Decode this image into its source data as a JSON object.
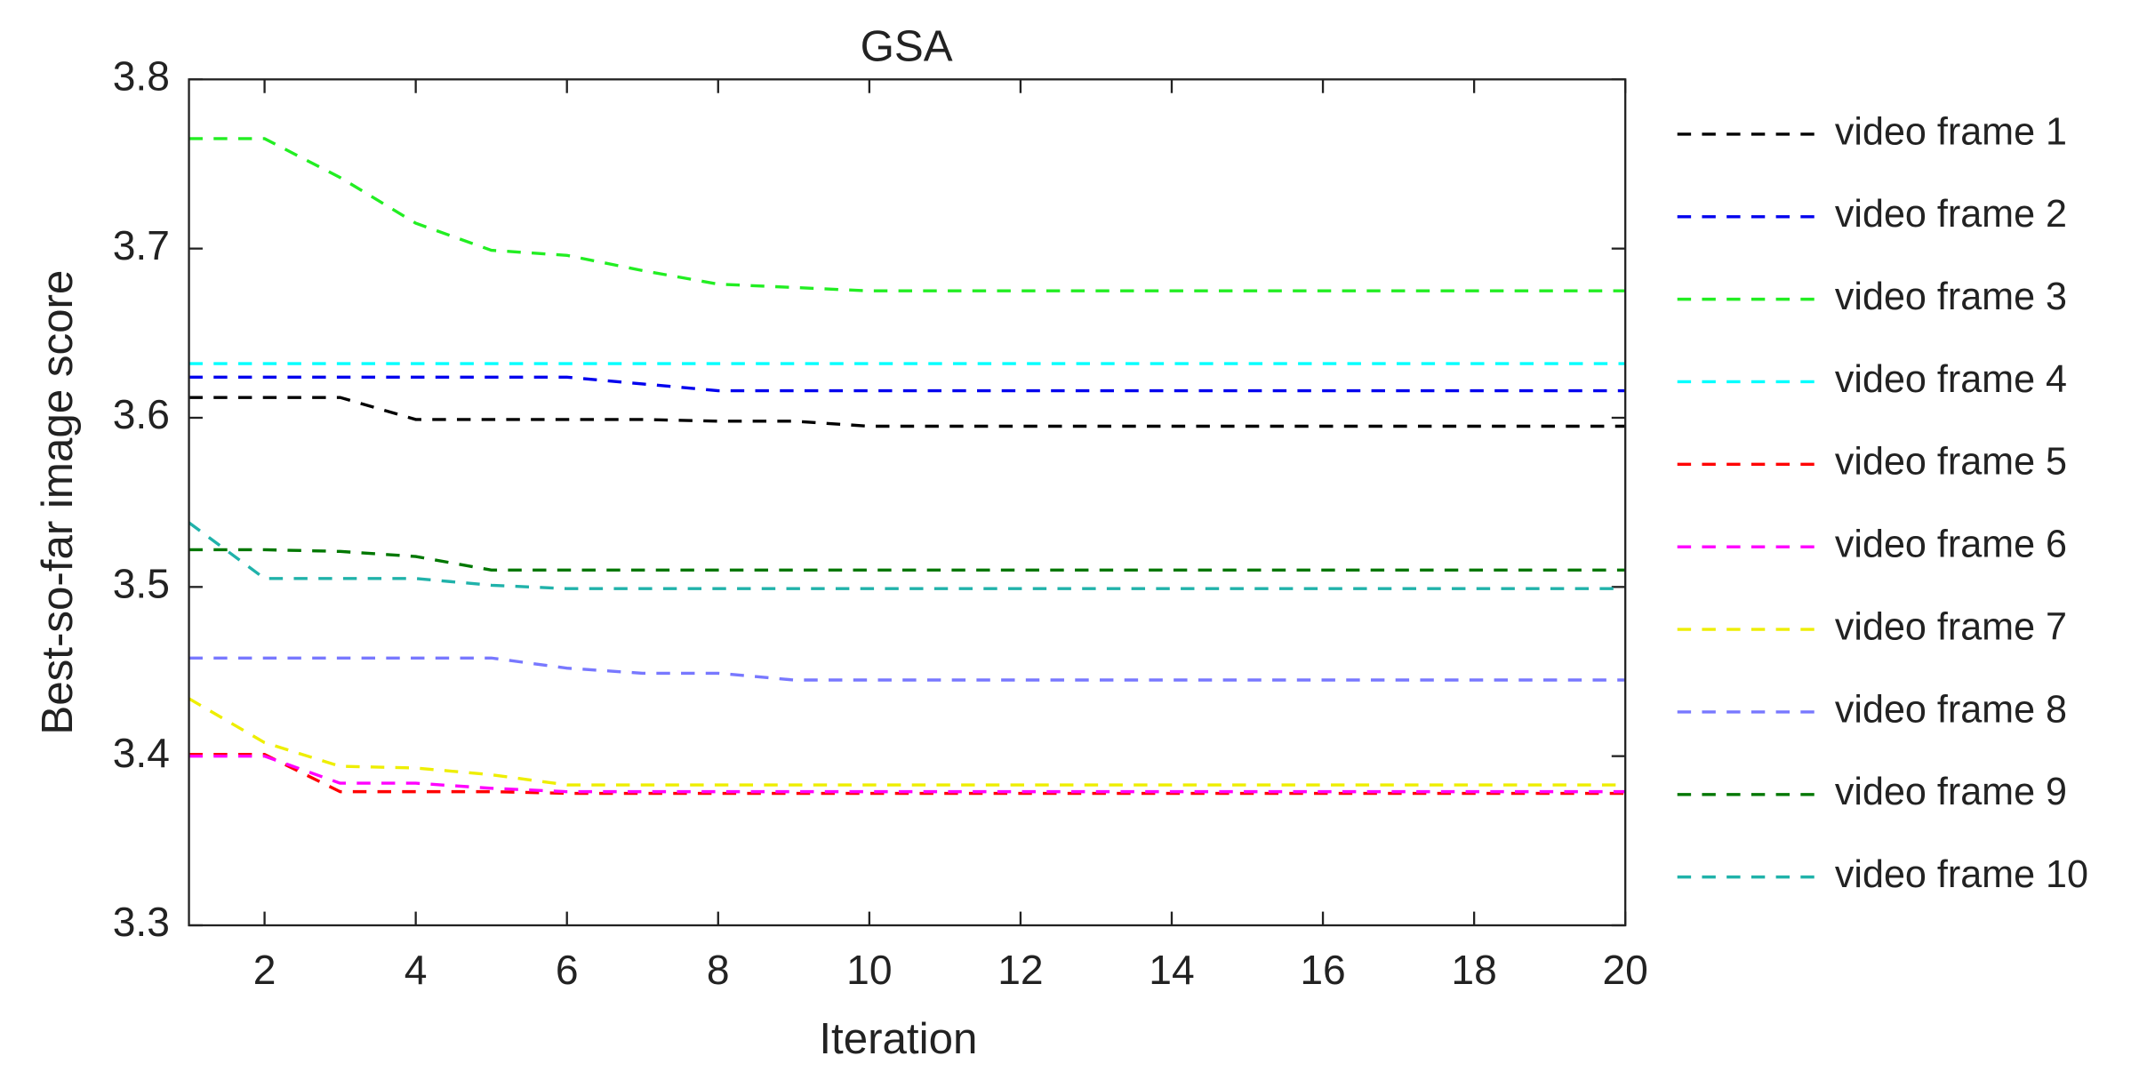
{
  "chart_data": {
    "type": "line",
    "title": "GSA",
    "xlabel": "Iteration",
    "ylabel": "Best-so-far image score",
    "x": [
      1,
      2,
      3,
      4,
      5,
      6,
      7,
      8,
      9,
      10,
      11,
      12,
      13,
      14,
      15,
      16,
      17,
      18,
      19,
      20
    ],
    "xlim": [
      1,
      20
    ],
    "xticks": [
      2,
      4,
      6,
      8,
      10,
      12,
      14,
      16,
      18,
      20
    ],
    "ylim": [
      3.3,
      3.8
    ],
    "yticks": [
      3.3,
      3.4,
      3.5,
      3.6,
      3.7,
      3.8
    ],
    "line_style": "dashed",
    "series": [
      {
        "name": "video frame 1",
        "color": "#000000",
        "values": [
          3.612,
          3.612,
          3.612,
          3.599,
          3.599,
          3.599,
          3.599,
          3.598,
          3.598,
          3.595,
          3.595,
          3.595,
          3.595,
          3.595,
          3.595,
          3.595,
          3.595,
          3.595,
          3.595,
          3.595
        ]
      },
      {
        "name": "video frame 2",
        "color": "#0000ee",
        "values": [
          3.624,
          3.624,
          3.624,
          3.624,
          3.624,
          3.624,
          3.62,
          3.616,
          3.616,
          3.616,
          3.616,
          3.616,
          3.616,
          3.616,
          3.616,
          3.616,
          3.616,
          3.616,
          3.616,
          3.616
        ]
      },
      {
        "name": "video frame 3",
        "color": "#22ee22",
        "values": [
          3.765,
          3.765,
          3.742,
          3.715,
          3.699,
          3.696,
          3.687,
          3.679,
          3.677,
          3.675,
          3.675,
          3.675,
          3.675,
          3.675,
          3.675,
          3.675,
          3.675,
          3.675,
          3.675,
          3.675
        ]
      },
      {
        "name": "video frame 4",
        "color": "#00ffff",
        "values": [
          3.632,
          3.632,
          3.632,
          3.632,
          3.632,
          3.632,
          3.632,
          3.632,
          3.632,
          3.632,
          3.632,
          3.632,
          3.632,
          3.632,
          3.632,
          3.632,
          3.632,
          3.632,
          3.632,
          3.632
        ]
      },
      {
        "name": "video frame 5",
        "color": "#ff0000",
        "values": [
          3.401,
          3.401,
          3.379,
          3.379,
          3.379,
          3.378,
          3.378,
          3.378,
          3.378,
          3.378,
          3.378,
          3.378,
          3.378,
          3.378,
          3.378,
          3.378,
          3.378,
          3.378,
          3.378,
          3.378
        ]
      },
      {
        "name": "video frame 6",
        "color": "#ff00ff",
        "values": [
          3.4,
          3.4,
          3.384,
          3.384,
          3.381,
          3.379,
          3.379,
          3.379,
          3.379,
          3.379,
          3.379,
          3.379,
          3.379,
          3.379,
          3.379,
          3.379,
          3.379,
          3.379,
          3.379,
          3.379
        ]
      },
      {
        "name": "video frame 7",
        "color": "#eeee00",
        "values": [
          3.434,
          3.408,
          3.394,
          3.393,
          3.389,
          3.383,
          3.383,
          3.383,
          3.383,
          3.383,
          3.383,
          3.383,
          3.383,
          3.383,
          3.383,
          3.383,
          3.383,
          3.383,
          3.383,
          3.383
        ]
      },
      {
        "name": "video frame 8",
        "color": "#7878ff",
        "values": [
          3.458,
          3.458,
          3.458,
          3.458,
          3.458,
          3.452,
          3.449,
          3.449,
          3.445,
          3.445,
          3.445,
          3.445,
          3.445,
          3.445,
          3.445,
          3.445,
          3.445,
          3.445,
          3.445,
          3.445
        ]
      },
      {
        "name": "video frame 9",
        "color": "#007700",
        "values": [
          3.522,
          3.522,
          3.521,
          3.518,
          3.51,
          3.51,
          3.51,
          3.51,
          3.51,
          3.51,
          3.51,
          3.51,
          3.51,
          3.51,
          3.51,
          3.51,
          3.51,
          3.51,
          3.51,
          3.51
        ]
      },
      {
        "name": "video frame 10",
        "color": "#20b2aa",
        "values": [
          3.538,
          3.505,
          3.505,
          3.505,
          3.501,
          3.499,
          3.499,
          3.499,
          3.499,
          3.499,
          3.499,
          3.499,
          3.499,
          3.499,
          3.499,
          3.499,
          3.499,
          3.499,
          3.499,
          3.499
        ]
      }
    ]
  }
}
